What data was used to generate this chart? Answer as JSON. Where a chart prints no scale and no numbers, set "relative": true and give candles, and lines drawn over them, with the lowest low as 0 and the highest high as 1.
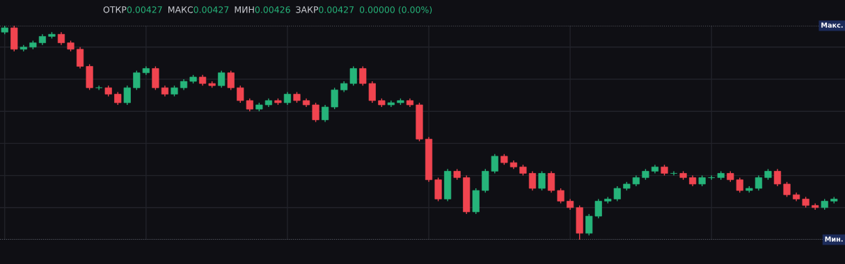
{
  "chart_data": {
    "type": "candlestick",
    "relative": true,
    "grid": true,
    "annotations": [
      "ОТКР",
      "0.00427",
      "МАКС",
      "0.00427",
      "МИН",
      "0.00426",
      "ЗАКР",
      "0.00427",
      "0.00000 (0.00%)"
    ],
    "ref_lines": [
      {
        "axis": "y",
        "value": 1,
        "label": "Макс.",
        "color": "#9598a1",
        "line_style": "dotted"
      },
      {
        "axis": "y",
        "value": 0,
        "label": "Мин.",
        "color": "#9598a1",
        "line_style": "dotted"
      }
    ],
    "categories": [
      null,
      null,
      null,
      null,
      null,
      null,
      null,
      null,
      null,
      null,
      null,
      null,
      null,
      null,
      null,
      null,
      null,
      null,
      null,
      null,
      null,
      null,
      null,
      null,
      null,
      null,
      null,
      null,
      null,
      null,
      null,
      null,
      null,
      null,
      null,
      null,
      null,
      null,
      null,
      null,
      null,
      null,
      null,
      null,
      null,
      null,
      null,
      null,
      null,
      null,
      null,
      null,
      null,
      null,
      null,
      null,
      null,
      null,
      null,
      null,
      null,
      null,
      null,
      null,
      null,
      null,
      null,
      null,
      null,
      null,
      null,
      null,
      null,
      null,
      null,
      null,
      null,
      null,
      null,
      null,
      null,
      null,
      null,
      null,
      null,
      null,
      null,
      null,
      null
    ],
    "ohlc": [
      [
        0.97,
        1.0,
        0.96,
        0.99
      ],
      [
        0.99,
        1.0,
        0.88,
        0.89
      ],
      [
        0.89,
        0.91,
        0.88,
        0.9
      ],
      [
        0.9,
        0.93,
        0.89,
        0.92
      ],
      [
        0.92,
        0.96,
        0.91,
        0.95
      ],
      [
        0.95,
        0.97,
        0.94,
        0.96
      ],
      [
        0.96,
        0.97,
        0.91,
        0.92
      ],
      [
        0.92,
        0.93,
        0.88,
        0.89
      ],
      [
        0.89,
        0.9,
        0.8,
        0.81
      ],
      [
        0.81,
        0.82,
        0.7,
        0.71
      ],
      [
        0.71,
        0.72,
        0.7,
        0.71
      ],
      [
        0.71,
        0.72,
        0.67,
        0.68
      ],
      [
        0.68,
        0.69,
        0.63,
        0.64
      ],
      [
        0.64,
        0.72,
        0.63,
        0.71
      ],
      [
        0.71,
        0.79,
        0.7,
        0.78
      ],
      [
        0.78,
        0.81,
        0.77,
        0.8
      ],
      [
        0.8,
        0.81,
        0.7,
        0.71
      ],
      [
        0.71,
        0.72,
        0.67,
        0.68
      ],
      [
        0.68,
        0.72,
        0.67,
        0.71
      ],
      [
        0.71,
        0.75,
        0.7,
        0.74
      ],
      [
        0.74,
        0.77,
        0.73,
        0.76
      ],
      [
        0.76,
        0.77,
        0.72,
        0.73
      ],
      [
        0.73,
        0.74,
        0.71,
        0.72
      ],
      [
        0.72,
        0.79,
        0.71,
        0.78
      ],
      [
        0.78,
        0.79,
        0.7,
        0.71
      ],
      [
        0.71,
        0.72,
        0.64,
        0.65
      ],
      [
        0.65,
        0.66,
        0.6,
        0.61
      ],
      [
        0.61,
        0.64,
        0.6,
        0.63
      ],
      [
        0.63,
        0.66,
        0.62,
        0.65
      ],
      [
        0.65,
        0.66,
        0.63,
        0.64
      ],
      [
        0.64,
        0.69,
        0.63,
        0.68
      ],
      [
        0.68,
        0.69,
        0.64,
        0.65
      ],
      [
        0.65,
        0.66,
        0.62,
        0.63
      ],
      [
        0.63,
        0.64,
        0.55,
        0.56
      ],
      [
        0.56,
        0.63,
        0.55,
        0.62
      ],
      [
        0.62,
        0.71,
        0.61,
        0.7
      ],
      [
        0.7,
        0.74,
        0.69,
        0.73
      ],
      [
        0.73,
        0.81,
        0.72,
        0.8
      ],
      [
        0.8,
        0.81,
        0.72,
        0.73
      ],
      [
        0.73,
        0.74,
        0.64,
        0.65
      ],
      [
        0.65,
        0.66,
        0.62,
        0.63
      ],
      [
        0.63,
        0.65,
        0.62,
        0.64
      ],
      [
        0.64,
        0.66,
        0.63,
        0.65
      ],
      [
        0.65,
        0.66,
        0.62,
        0.63
      ],
      [
        0.63,
        0.64,
        0.46,
        0.47
      ],
      [
        0.47,
        0.48,
        0.27,
        0.28
      ],
      [
        0.28,
        0.29,
        0.18,
        0.19
      ],
      [
        0.19,
        0.33,
        0.18,
        0.32
      ],
      [
        0.32,
        0.33,
        0.28,
        0.29
      ],
      [
        0.29,
        0.3,
        0.12,
        0.13
      ],
      [
        0.13,
        0.24,
        0.12,
        0.23
      ],
      [
        0.23,
        0.33,
        0.22,
        0.32
      ],
      [
        0.32,
        0.4,
        0.31,
        0.39
      ],
      [
        0.39,
        0.4,
        0.35,
        0.36
      ],
      [
        0.36,
        0.37,
        0.33,
        0.34
      ],
      [
        0.34,
        0.35,
        0.3,
        0.31
      ],
      [
        0.31,
        0.32,
        0.23,
        0.24
      ],
      [
        0.24,
        0.32,
        0.23,
        0.31
      ],
      [
        0.31,
        0.32,
        0.22,
        0.23
      ],
      [
        0.23,
        0.24,
        0.17,
        0.18
      ],
      [
        0.18,
        0.19,
        0.14,
        0.15
      ],
      [
        0.15,
        0.16,
        0.0,
        0.03
      ],
      [
        0.03,
        0.12,
        0.02,
        0.11
      ],
      [
        0.11,
        0.19,
        0.1,
        0.18
      ],
      [
        0.18,
        0.2,
        0.17,
        0.19
      ],
      [
        0.19,
        0.25,
        0.18,
        0.24
      ],
      [
        0.24,
        0.27,
        0.23,
        0.26
      ],
      [
        0.26,
        0.3,
        0.25,
        0.29
      ],
      [
        0.29,
        0.33,
        0.28,
        0.32
      ],
      [
        0.32,
        0.35,
        0.31,
        0.34
      ],
      [
        0.34,
        0.35,
        0.3,
        0.31
      ],
      [
        0.31,
        0.32,
        0.3,
        0.31
      ],
      [
        0.31,
        0.32,
        0.28,
        0.29
      ],
      [
        0.29,
        0.3,
        0.25,
        0.26
      ],
      [
        0.26,
        0.3,
        0.25,
        0.29
      ],
      [
        0.29,
        0.3,
        0.28,
        0.29
      ],
      [
        0.29,
        0.32,
        0.28,
        0.31
      ],
      [
        0.31,
        0.32,
        0.27,
        0.28
      ],
      [
        0.28,
        0.29,
        0.22,
        0.23
      ],
      [
        0.23,
        0.25,
        0.22,
        0.24
      ],
      [
        0.24,
        0.3,
        0.23,
        0.29
      ],
      [
        0.29,
        0.33,
        0.28,
        0.32
      ],
      [
        0.32,
        0.33,
        0.25,
        0.26
      ],
      [
        0.26,
        0.27,
        0.2,
        0.21
      ],
      [
        0.21,
        0.22,
        0.18,
        0.19
      ],
      [
        0.19,
        0.2,
        0.15,
        0.16
      ],
      [
        0.16,
        0.17,
        0.14,
        0.15
      ],
      [
        0.15,
        0.19,
        0.14,
        0.18
      ],
      [
        0.18,
        0.2,
        0.17,
        0.19
      ]
    ]
  }
}
